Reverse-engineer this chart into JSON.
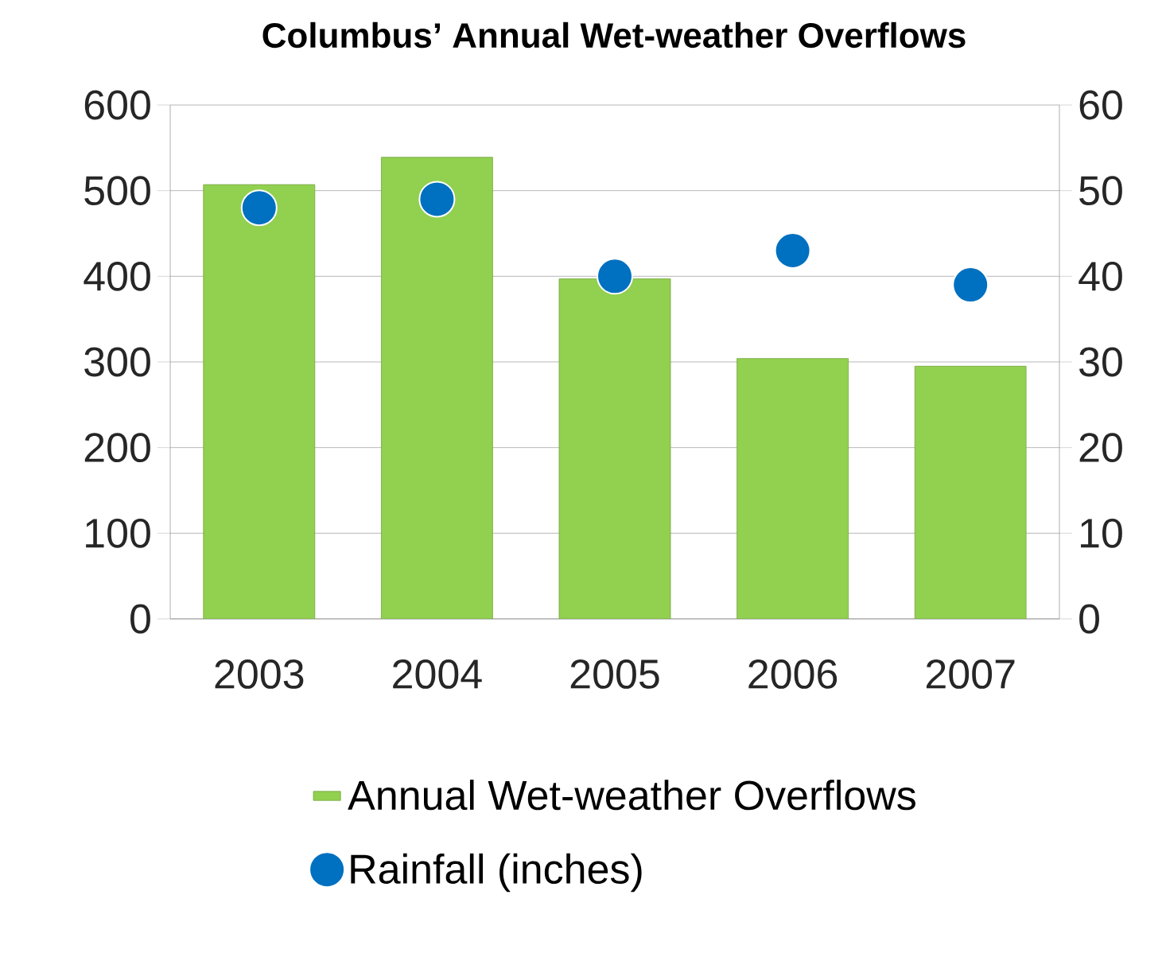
{
  "chart_data": {
    "type": "bar",
    "title": "Columbus’ Annual Wet-weather Overflows",
    "categories": [
      "2003",
      "2004",
      "2005",
      "2006",
      "2007"
    ],
    "series": [
      {
        "name": "Annual Wet-weather Overflows",
        "color": "#92d050",
        "values": [
          507,
          539,
          397,
          304,
          295
        ]
      },
      {
        "name": "Rainfall (inches)",
        "type": "scatter",
        "axis": "y2",
        "color": "#0070c0",
        "values": [
          48,
          49,
          40,
          43,
          39
        ]
      }
    ],
    "ylim": [
      0,
      600
    ],
    "yticks": [
      0,
      100,
      200,
      300,
      400,
      500,
      600
    ],
    "y2lim": [
      0,
      60
    ],
    "y2ticks": [
      0,
      10,
      20,
      30,
      40,
      50,
      60
    ],
    "grid": "y",
    "legend": "bottom"
  }
}
